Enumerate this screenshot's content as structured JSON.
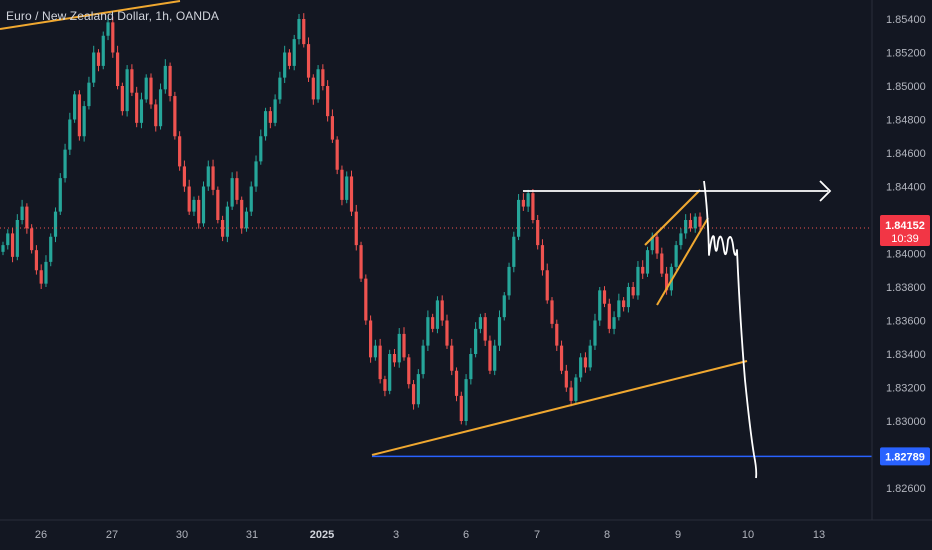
{
  "header": {
    "title": "Euro / New Zealand Dollar, 1h, OANDA"
  },
  "colors": {
    "up": "#26a69a",
    "down": "#ef5350",
    "background": "#131722",
    "trendline": "#f0a830",
    "horizontal": "#2962ff",
    "annotation": "#ffffff",
    "price_tag": "#f23645"
  },
  "chart_data": {
    "type": "candlestick",
    "symbol": "EURNZD",
    "timeframe": "1h",
    "source": "OANDA",
    "ylim": [
      1.8245,
      1.8555
    ],
    "yticks": [
      "1.85400",
      "1.85200",
      "1.85000",
      "1.84800",
      "1.84600",
      "1.84400",
      "1.84200",
      "1.84000",
      "1.83800",
      "1.83600",
      "1.83400",
      "1.83200",
      "1.83000",
      "1.82600"
    ],
    "xticks": [
      "26",
      "27",
      "30",
      "31",
      "2025",
      "3",
      "6",
      "7",
      "8",
      "9",
      "10",
      "13"
    ],
    "last_price": {
      "value": "1.84152",
      "countdown": "10:39"
    },
    "level": {
      "value": "1.82789"
    },
    "series": [
      {
        "label": "26",
        "close": [
          1.8405,
          1.8412,
          1.8398,
          1.842,
          1.8428,
          1.8415,
          1.8402,
          1.839,
          1.8382,
          1.8395,
          1.841,
          1.8425,
          1.8445,
          1.8462,
          1.848,
          1.8495,
          1.847,
          1.8488,
          1.8502,
          1.852,
          1.8512,
          1.853
        ]
      },
      {
        "label": "27",
        "close": [
          1.8538,
          1.852,
          1.85,
          1.8485,
          1.851,
          1.8496,
          1.8478,
          1.8492,
          1.8505,
          1.8489,
          1.8476,
          1.8498,
          1.8512,
          1.8494,
          1.847,
          1.8452,
          1.844,
          1.8425,
          1.8432,
          1.8418,
          1.844,
          1.8452,
          1.8438,
          1.842,
          1.841,
          1.8428,
          1.8445,
          1.8432,
          1.8415,
          1.8425
        ]
      },
      {
        "label": "30",
        "close": [
          1.844,
          1.8455,
          1.847,
          1.8485,
          1.8478,
          1.8492,
          1.8505,
          1.852,
          1.8512,
          1.8528,
          1.854,
          1.8525,
          1.8505,
          1.8492,
          1.851,
          1.85,
          1.8482,
          1.8468,
          1.845,
          1.8432,
          1.8446,
          1.8425,
          1.8405,
          1.8385,
          1.836,
          1.8338,
          1.8345,
          1.8325,
          1.8318,
          1.834,
          1.8335,
          1.8352,
          1.8338,
          1.8322,
          1.831,
          1.8328,
          1.8345,
          1.8362,
          1.8355,
          1.8372,
          1.836,
          1.8345,
          1.833,
          1.8315,
          1.83,
          1.8325,
          1.834,
          1.8355,
          1.8362,
          1.8348
        ]
      },
      {
        "label": "6",
        "close": [
          1.833,
          1.8345,
          1.8362,
          1.8375,
          1.8392,
          1.841,
          1.8432,
          1.8428,
          1.8436,
          1.842,
          1.8405,
          1.839,
          1.8372,
          1.8358,
          1.8345,
          1.833,
          1.832,
          1.8312,
          1.8326,
          1.8338,
          1.8332,
          1.8345,
          1.836,
          1.8378,
          1.837,
          1.8355,
          1.8362,
          1.8372,
          1.8368,
          1.838,
          1.8375,
          1.8392,
          1.8388,
          1.8402,
          1.841,
          1.84,
          1.8388,
          1.8378,
          1.8392,
          1.8405,
          1.8412,
          1.842,
          1.8415,
          1.8422,
          1.8416
        ]
      }
    ],
    "annotations": [
      {
        "type": "trendline",
        "name": "upper-left-trendline"
      },
      {
        "type": "trendline",
        "name": "lower-support-trendline"
      },
      {
        "type": "rising-wedge",
        "name": "rising-wedge"
      },
      {
        "type": "horizontal-arrow",
        "name": "resistance-arrow"
      },
      {
        "type": "horizontal-line",
        "name": "support-line",
        "value": "1.82789"
      },
      {
        "type": "freehand",
        "name": "projected-path"
      }
    ]
  }
}
